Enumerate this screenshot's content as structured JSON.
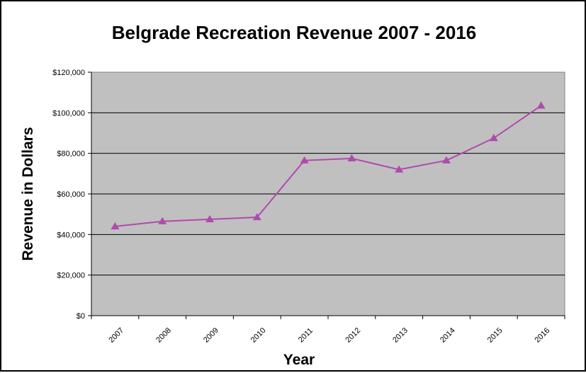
{
  "chart_data": {
    "type": "line",
    "title": "Belgrade Recreation Revenue 2007 - 2016",
    "xlabel": "Year",
    "ylabel": "Revenue in Dollars",
    "categories": [
      "2007",
      "2008",
      "2009",
      "2010",
      "2011",
      "2012",
      "2013",
      "2014",
      "2015",
      "2016"
    ],
    "series": [
      {
        "values": [
          44000,
          46500,
          47500,
          48500,
          76500,
          77500,
          72000,
          76500,
          87500,
          103500
        ],
        "color": "#b04aad",
        "marker": "triangle"
      }
    ],
    "ylim": [
      0,
      120000
    ],
    "yticks": [
      0,
      20000,
      40000,
      60000,
      80000,
      100000,
      120000
    ],
    "ytick_labels": [
      "$0",
      "$20,000",
      "$40,000",
      "$60,000",
      "$80,000",
      "$100,000",
      "$120,000"
    ],
    "grid": true,
    "legend": "none",
    "plot_background": "#c0c0c0",
    "gridline_color": "#000000"
  }
}
